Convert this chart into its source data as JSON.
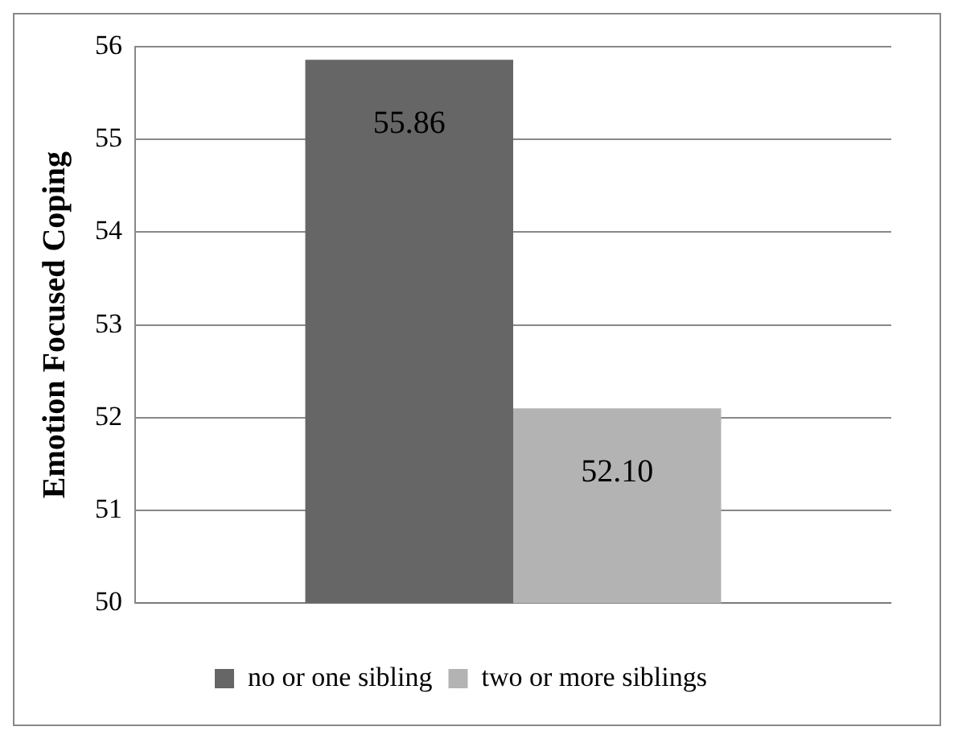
{
  "chart_data": {
    "type": "bar",
    "ylabel": "Emotion Focused Coping",
    "categories": [
      null
    ],
    "series": [
      {
        "name": "no or one sibling",
        "color": "#666666",
        "values": [
          55.86
        ],
        "value_labels": [
          "55.86"
        ]
      },
      {
        "name": "two or more siblings",
        "color": "#b3b3b3",
        "values": [
          52.1
        ],
        "value_labels": [
          "52.10"
        ]
      }
    ],
    "ylim": [
      50,
      56
    ],
    "yticks": [
      50,
      51,
      52,
      53,
      54,
      55,
      56
    ],
    "grid": "y",
    "legend": "bottom"
  }
}
